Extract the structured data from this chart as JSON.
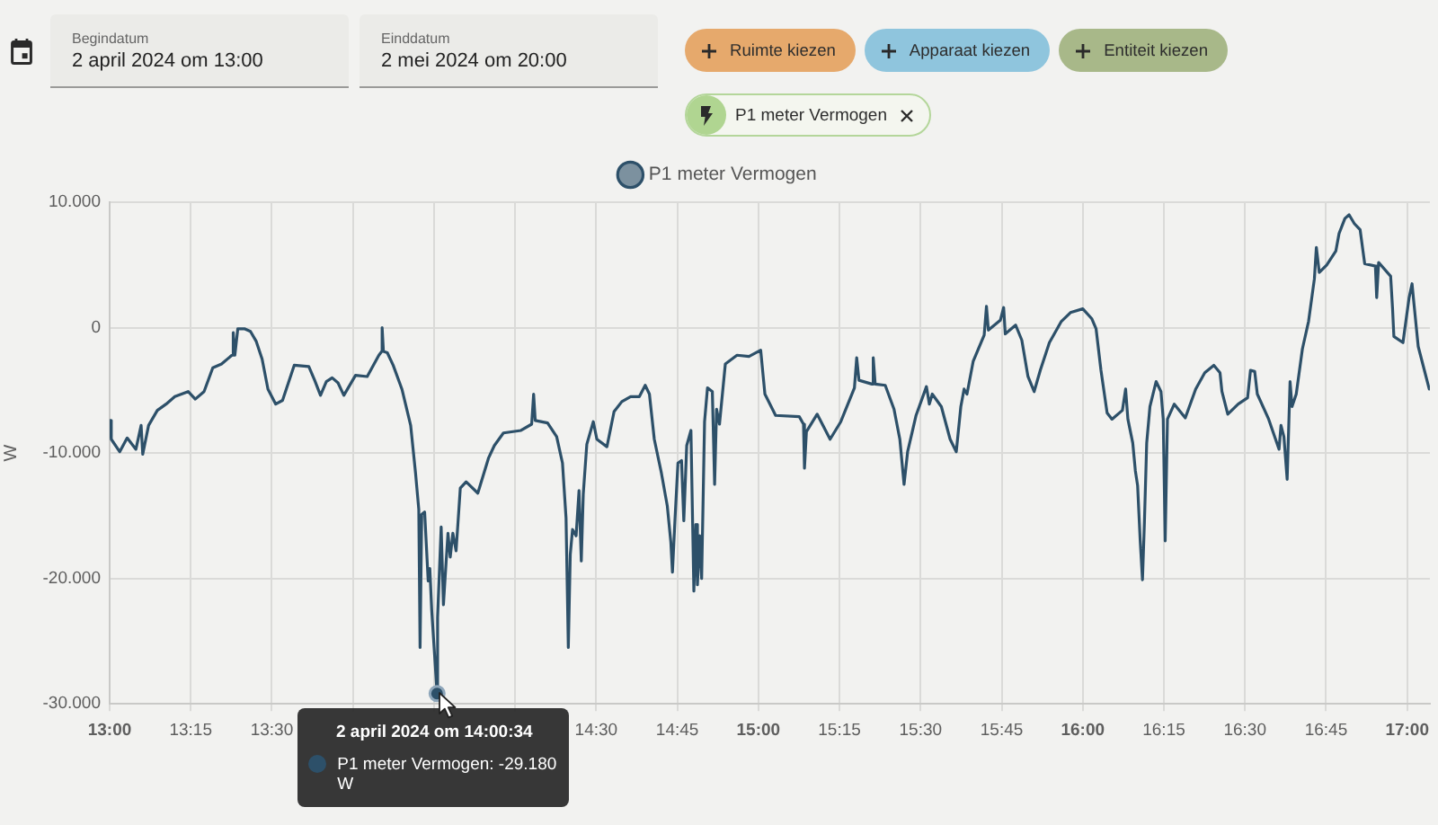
{
  "chart_data": {
    "type": "line",
    "ylabel": "W",
    "legend": "top",
    "grid": true,
    "marker": "none",
    "line_style": "solid",
    "xlim": [
      13,
      17.07
    ],
    "xticks": [
      {
        "value": 13,
        "label": "13:00"
      },
      {
        "value": 13.25,
        "label": "13:15"
      },
      {
        "value": 13.5,
        "label": "13:30"
      },
      {
        "value": 13.75,
        "label": null
      },
      {
        "value": 14,
        "label": null
      },
      {
        "value": 14.25,
        "label": null
      },
      {
        "value": 14.5,
        "label": "14:30"
      },
      {
        "value": 14.75,
        "label": "14:45"
      },
      {
        "value": 15,
        "label": "15:00"
      },
      {
        "value": 15.25,
        "label": "15:15"
      },
      {
        "value": 15.5,
        "label": "15:30"
      },
      {
        "value": 15.75,
        "label": "15:45"
      },
      {
        "value": 16,
        "label": "16:00"
      },
      {
        "value": 16.25,
        "label": "16:15"
      },
      {
        "value": 16.5,
        "label": "16:30"
      },
      {
        "value": 16.75,
        "label": "16:45"
      },
      {
        "value": 17,
        "label": "17:00"
      }
    ],
    "ylim": [
      -30000,
      10000
    ],
    "yticks": [
      {
        "value": -30000,
        "label": "-30.000"
      },
      {
        "value": -20000,
        "label": "-20.000"
      },
      {
        "value": -10000,
        "label": "-10.000"
      },
      0,
      {
        "value": 10000,
        "label": "10.000"
      }
    ],
    "x": [
      13.0,
      13.005,
      13.031,
      13.054,
      13.081,
      13.097,
      13.102,
      13.12,
      13.147,
      13.174,
      13.201,
      13.242,
      13.264,
      13.291,
      13.318,
      13.345,
      13.377,
      13.381,
      13.386,
      13.395,
      13.417,
      13.434,
      13.452,
      13.47,
      13.488,
      13.512,
      13.533,
      13.551,
      13.569,
      13.614,
      13.632,
      13.65,
      13.668,
      13.686,
      13.704,
      13.722,
      13.758,
      13.794,
      13.83,
      13.839,
      13.84,
      13.844,
      13.856,
      13.874,
      13.901,
      13.928,
      13.943,
      13.953,
      13.957,
      13.962,
      13.971,
      13.982,
      13.987,
      13.993,
      14.0094,
      14.011,
      14.022,
      14.029,
      14.036,
      14.043,
      14.05,
      14.058,
      14.068,
      14.081,
      14.099,
      14.135,
      14.168,
      14.186,
      14.214,
      14.268,
      14.301,
      14.307,
      14.312,
      14.35,
      14.378,
      14.396,
      14.407,
      14.414,
      14.42,
      14.427,
      14.438,
      14.447,
      14.454,
      14.46,
      14.471,
      14.491,
      14.502,
      14.533,
      14.555,
      14.579,
      14.606,
      14.633,
      14.651,
      14.664,
      14.679,
      14.701,
      14.719,
      14.73,
      14.735,
      14.743,
      14.752,
      14.763,
      14.77,
      14.779,
      14.792,
      14.801,
      14.807,
      14.812,
      14.819,
      14.825,
      14.834,
      14.843,
      14.858,
      14.865,
      14.871,
      14.88,
      14.898,
      14.934,
      14.971,
      15.007,
      15.02,
      15.053,
      15.126,
      15.139,
      15.142,
      15.148,
      15.181,
      15.221,
      15.254,
      15.296,
      15.303,
      15.31,
      15.35,
      15.354,
      15.36,
      15.391,
      15.418,
      15.436,
      15.449,
      15.46,
      15.486,
      15.518,
      15.527,
      15.536,
      15.564,
      15.591,
      15.61,
      15.624,
      15.634,
      15.643,
      15.662,
      15.696,
      15.703,
      15.709,
      15.746,
      15.756,
      15.761,
      15.793,
      15.812,
      15.831,
      15.85,
      15.869,
      15.897,
      15.934,
      15.962,
      16.0,
      16.028,
      16.041,
      16.056,
      16.075,
      16.09,
      16.122,
      16.132,
      16.139,
      16.154,
      16.162,
      16.169,
      16.177,
      16.184,
      16.19,
      16.197,
      16.207,
      16.226,
      16.241,
      16.248,
      16.254,
      16.261,
      16.282,
      16.316,
      16.348,
      16.376,
      16.404,
      16.423,
      16.429,
      16.447,
      16.479,
      16.508,
      16.517,
      16.53,
      16.538,
      16.573,
      16.605,
      16.611,
      16.62,
      16.63,
      16.639,
      16.645,
      16.658,
      16.677,
      16.696,
      16.714,
      16.72,
      16.729,
      16.752,
      16.78,
      16.79,
      16.808,
      16.821,
      16.837,
      16.855,
      16.869,
      16.902,
      16.906,
      16.912,
      16.949,
      16.955,
      16.959,
      16.987,
      17.006,
      17.015,
      17.021,
      17.034,
      17.053,
      17.068
    ],
    "series": [
      {
        "name": "P1 meter Vermogen",
        "color": "#2d5069",
        "values": [
          -7400,
          -8900,
          -9900,
          -8800,
          -9700,
          -7800,
          -10100,
          -7800,
          -6600,
          -6100,
          -5500,
          -5100,
          -5700,
          -5100,
          -3200,
          -2900,
          -2200,
          -400,
          -2200,
          -100,
          -100,
          -300,
          -1100,
          -2500,
          -4900,
          -6100,
          -5800,
          -4400,
          -3000,
          -3100,
          -4200,
          -5400,
          -4300,
          -4000,
          -4400,
          -5400,
          -3800,
          -3900,
          -2200,
          -1900,
          0,
          -1900,
          -2000,
          -3000,
          -4900,
          -7800,
          -11600,
          -14500,
          -25500,
          -14900,
          -14700,
          -20200,
          -19200,
          -22600,
          -29180,
          -23100,
          -15900,
          -22100,
          -19200,
          -16400,
          -18300,
          -16400,
          -17800,
          -12800,
          -12300,
          -13200,
          -10400,
          -9400,
          -8400,
          -8200,
          -7700,
          -5300,
          -7400,
          -7600,
          -8700,
          -10800,
          -15200,
          -25500,
          -18100,
          -16100,
          -16600,
          -13000,
          -18600,
          -13300,
          -9300,
          -7500,
          -8900,
          -9500,
          -6700,
          -5900,
          -5500,
          -5500,
          -4600,
          -5300,
          -8900,
          -11600,
          -14200,
          -17100,
          -19500,
          -15200,
          -10800,
          -10600,
          -15400,
          -9400,
          -8200,
          -21000,
          -15700,
          -20500,
          -16600,
          -20000,
          -7500,
          -4800,
          -5100,
          -12500,
          -6500,
          -7700,
          -2900,
          -2200,
          -2300,
          -1800,
          -5300,
          -7000,
          -7100,
          -7700,
          -11200,
          -8300,
          -6900,
          -8900,
          -7500,
          -4800,
          -2400,
          -4200,
          -4500,
          -2400,
          -4500,
          -4600,
          -6500,
          -8900,
          -12500,
          -9900,
          -7000,
          -4700,
          -6100,
          -5300,
          -6300,
          -8900,
          -9900,
          -6300,
          -4900,
          -5300,
          -2700,
          -600,
          1700,
          -200,
          600,
          1600,
          -500,
          200,
          -1000,
          -3900,
          -5100,
          -3400,
          -1200,
          500,
          1200,
          1500,
          700,
          -100,
          -3400,
          -6800,
          -7300,
          -6600,
          -4900,
          -7300,
          -9200,
          -11400,
          -12600,
          -17000,
          -20100,
          -15500,
          -9200,
          -6300,
          -4300,
          -5100,
          -7300,
          -17000,
          -7300,
          -6100,
          -7200,
          -4900,
          -3600,
          -3000,
          -3600,
          -5100,
          -6900,
          -6100,
          -5600,
          -3400,
          -3500,
          -5300,
          -7300,
          -9700,
          -7800,
          -8700,
          -12100,
          -4300,
          -6300,
          -5300,
          -1700,
          500,
          3900,
          6400,
          4400,
          5000,
          6100,
          7500,
          8700,
          9000,
          8300,
          7800,
          5100,
          4900,
          2400,
          5200,
          4100,
          1500,
          -700,
          -1200,
          2400,
          3500,
          1900,
          -1500,
          -3400,
          -4900
        ]
      }
    ],
    "annotations": [
      "Begindatum",
      "2 april 2024 om 13:00",
      "Einddatum",
      "2 mei 2024 om 20:00",
      "Ruimte kiezen",
      "Apparaat kiezen",
      "Entiteit kiezen",
      "P1 meter Vermogen",
      {
        "text": "2 april 2024 om 14:00:34",
        "x": 14.0094,
        "y": -29180
      },
      "P1 meter Vermogen: -29.180 W"
    ]
  }
}
